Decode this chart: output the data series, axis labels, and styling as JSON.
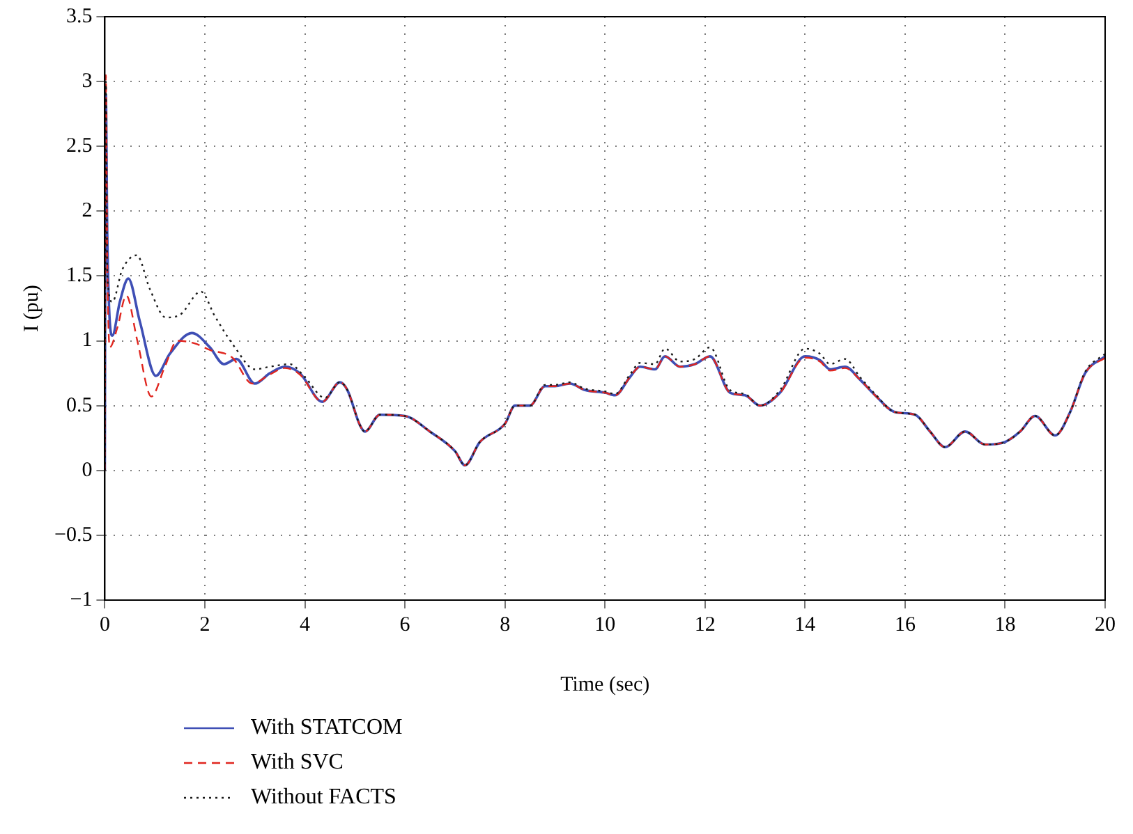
{
  "chart_data": {
    "type": "line",
    "xlabel": "Time (sec)",
    "ylabel": "I (pu)",
    "xlim": [
      0,
      20
    ],
    "ylim": [
      -1,
      3.5
    ],
    "xticks": [
      0,
      2,
      4,
      6,
      8,
      10,
      12,
      14,
      16,
      18,
      20
    ],
    "yticks": [
      -1,
      -0.5,
      0,
      0.5,
      1,
      1.5,
      2,
      2.5,
      3,
      3.5
    ],
    "grid": true,
    "legend": "bottom left",
    "marker": "none",
    "series": [
      {
        "name": "With STATCOM",
        "color": "#3f4fb5",
        "line_style": "solid",
        "x": [
          0,
          0.02,
          0.05,
          0.15,
          0.3,
          0.47,
          0.7,
          1.02,
          1.3,
          1.74,
          2.1,
          2.38,
          2.63,
          3.0,
          3.3,
          3.6,
          3.9,
          4.35,
          4.7,
          4.85,
          5.1,
          5.2,
          5.5,
          6.0,
          6.5,
          7.0,
          7.2,
          7.5,
          8.0,
          8.2,
          8.5,
          8.8,
          9.0,
          9.3,
          9.6,
          10.0,
          10.2,
          10.5,
          10.7,
          11.0,
          11.2,
          11.5,
          11.8,
          12.1,
          12.5,
          12.8,
          13.1,
          13.5,
          14.0,
          14.3,
          14.5,
          14.8,
          15.1,
          15.4,
          15.8,
          16.2,
          16.5,
          16.8,
          17.2,
          17.6,
          18.0,
          18.3,
          18.6,
          19.0,
          19.3,
          19.6,
          20
        ],
        "values": [
          0,
          2.9,
          1.8,
          1.04,
          1.3,
          1.48,
          1.15,
          0.73,
          0.9,
          1.06,
          0.95,
          0.82,
          0.86,
          0.67,
          0.75,
          0.8,
          0.75,
          0.53,
          0.68,
          0.62,
          0.35,
          0.3,
          0.43,
          0.42,
          0.3,
          0.15,
          0.04,
          0.22,
          0.36,
          0.5,
          0.5,
          0.65,
          0.65,
          0.67,
          0.62,
          0.6,
          0.58,
          0.72,
          0.8,
          0.78,
          0.88,
          0.8,
          0.82,
          0.88,
          0.6,
          0.58,
          0.5,
          0.6,
          0.88,
          0.85,
          0.78,
          0.8,
          0.7,
          0.58,
          0.45,
          0.43,
          0.3,
          0.18,
          0.3,
          0.2,
          0.22,
          0.3,
          0.42,
          0.27,
          0.45,
          0.75,
          0.88
        ]
      },
      {
        "name": "With SVC",
        "color": "#e0261f",
        "line_style": "dashed",
        "x": [
          0,
          0.02,
          0.05,
          0.1,
          0.25,
          0.43,
          0.65,
          0.93,
          1.2,
          1.45,
          1.8,
          2.1,
          2.55,
          2.95,
          3.3,
          3.6,
          3.9,
          4.35,
          4.7,
          4.85,
          5.1,
          5.2,
          5.5,
          6.0,
          6.5,
          7.0,
          7.2,
          7.5,
          8.0,
          8.2,
          8.5,
          8.8,
          9.0,
          9.3,
          9.6,
          10.0,
          10.2,
          10.5,
          10.7,
          11.0,
          11.2,
          11.5,
          11.8,
          12.1,
          12.5,
          12.8,
          13.1,
          13.5,
          14.0,
          14.3,
          14.5,
          14.8,
          15.1,
          15.4,
          15.8,
          16.2,
          16.5,
          16.8,
          17.2,
          17.6,
          18.0,
          18.3,
          18.6,
          19.0,
          19.3,
          19.6,
          20
        ],
        "values": [
          0,
          3.05,
          1.6,
          0.95,
          1.1,
          1.35,
          1.0,
          0.57,
          0.8,
          1.0,
          0.98,
          0.93,
          0.87,
          0.67,
          0.74,
          0.79,
          0.74,
          0.53,
          0.68,
          0.62,
          0.35,
          0.3,
          0.43,
          0.42,
          0.3,
          0.15,
          0.04,
          0.22,
          0.36,
          0.5,
          0.5,
          0.65,
          0.65,
          0.67,
          0.62,
          0.6,
          0.58,
          0.72,
          0.8,
          0.78,
          0.88,
          0.8,
          0.82,
          0.88,
          0.6,
          0.58,
          0.5,
          0.6,
          0.87,
          0.84,
          0.77,
          0.79,
          0.7,
          0.58,
          0.45,
          0.43,
          0.3,
          0.18,
          0.3,
          0.2,
          0.22,
          0.3,
          0.42,
          0.27,
          0.45,
          0.75,
          0.87
        ]
      },
      {
        "name": "Without FACTS",
        "color": "#1a1a1a",
        "line_style": "dotted",
        "x": [
          0,
          0.02,
          0.05,
          0.15,
          0.35,
          0.64,
          0.9,
          1.22,
          1.5,
          1.92,
          2.2,
          2.6,
          3.0,
          3.3,
          3.7,
          4.0,
          4.4,
          4.7,
          4.85,
          5.1,
          5.2,
          5.5,
          6.0,
          6.5,
          7.0,
          7.2,
          7.5,
          8.0,
          8.2,
          8.5,
          8.8,
          9.0,
          9.3,
          9.6,
          10.0,
          10.2,
          10.5,
          10.7,
          11.0,
          11.2,
          11.5,
          11.8,
          12.1,
          12.5,
          12.8,
          13.1,
          13.5,
          14.0,
          14.3,
          14.5,
          14.8,
          15.1,
          15.4,
          15.8,
          16.2,
          16.5,
          16.8,
          17.2,
          17.6,
          18.0,
          18.3,
          18.6,
          19.0,
          19.3,
          19.6,
          20
        ],
        "values": [
          0,
          3.0,
          1.5,
          1.3,
          1.55,
          1.66,
          1.4,
          1.18,
          1.2,
          1.38,
          1.19,
          0.95,
          0.78,
          0.8,
          0.82,
          0.72,
          0.56,
          0.68,
          0.62,
          0.35,
          0.3,
          0.43,
          0.42,
          0.3,
          0.15,
          0.04,
          0.22,
          0.36,
          0.5,
          0.5,
          0.66,
          0.66,
          0.68,
          0.63,
          0.61,
          0.59,
          0.74,
          0.83,
          0.82,
          0.94,
          0.84,
          0.86,
          0.95,
          0.62,
          0.59,
          0.5,
          0.62,
          0.94,
          0.9,
          0.82,
          0.86,
          0.72,
          0.59,
          0.45,
          0.43,
          0.3,
          0.18,
          0.3,
          0.2,
          0.22,
          0.3,
          0.42,
          0.27,
          0.45,
          0.76,
          0.9
        ]
      }
    ]
  }
}
